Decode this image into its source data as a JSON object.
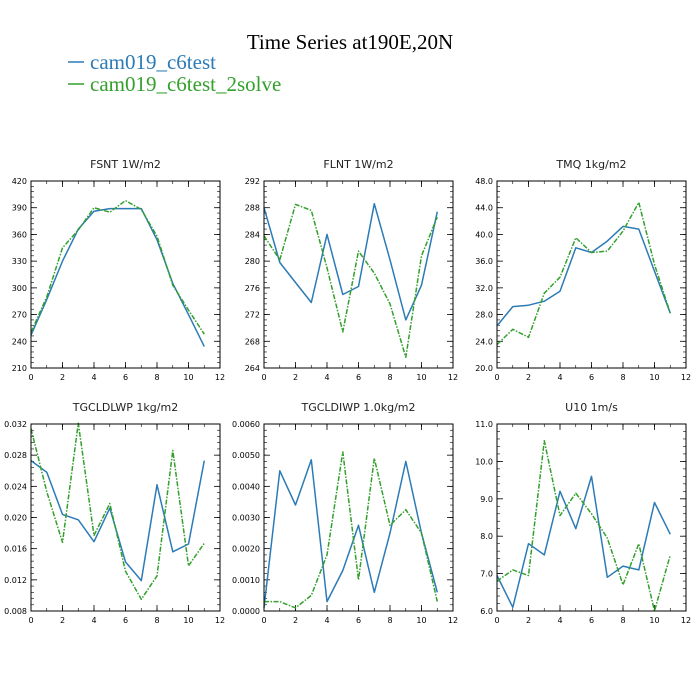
{
  "figure": {
    "title": "Time Series at190E,20N"
  },
  "legend": [
    {
      "name": "cam019_c6test",
      "color": "#2c7bb6"
    },
    {
      "name": "cam019_c6test_2solve",
      "color": "#33a02c"
    }
  ],
  "chart_data": [
    {
      "type": "line",
      "title": "FSNT   1W/m2",
      "x": [
        0,
        1,
        2,
        3,
        4,
        5,
        6,
        7,
        8,
        9,
        10,
        11
      ],
      "xlim": [
        0,
        12
      ],
      "xticks": [
        "0",
        "2",
        "4",
        "6",
        "8",
        "10",
        "12"
      ],
      "ylim": [
        210,
        420
      ],
      "yticks": [
        "210",
        "240",
        "270",
        "300",
        "330",
        "360",
        "390",
        "420"
      ],
      "series": [
        {
          "name": "cam019_c6test",
          "values": [
            247,
            287,
            330,
            366,
            386,
            389,
            389,
            389,
            354,
            305,
            270,
            234
          ]
        },
        {
          "name": "cam019_c6test_2solve",
          "values": [
            250,
            290,
            345,
            365,
            390,
            385,
            398,
            388,
            358,
            303,
            275,
            248
          ]
        }
      ]
    },
    {
      "type": "line",
      "title": "FLNT   1W/m2",
      "x": [
        0,
        1,
        2,
        3,
        4,
        5,
        6,
        7,
        8,
        9,
        10,
        11
      ],
      "xlim": [
        0,
        12
      ],
      "xticks": [
        "0",
        "2",
        "4",
        "6",
        "8",
        "10",
        "12"
      ],
      "ylim": [
        264,
        292
      ],
      "yticks": [
        "264",
        "268",
        "272",
        "276",
        "280",
        "284",
        "288",
        "292"
      ],
      "series": [
        {
          "name": "cam019_c6test",
          "values": [
            288,
            279.8,
            276.8,
            273.8,
            284,
            275,
            276.2,
            288.6,
            280.2,
            271.2,
            276.4,
            287.4
          ]
        },
        {
          "name": "cam019_c6test_2solve",
          "values": [
            283.8,
            280.2,
            288.5,
            287.6,
            279,
            269.4,
            281.5,
            278.2,
            273.6,
            265.6,
            280.8,
            286.6
          ]
        }
      ]
    },
    {
      "type": "line",
      "title": "TMQ   1kg/m2",
      "x": [
        0,
        1,
        2,
        3,
        4,
        5,
        6,
        7,
        8,
        9,
        10,
        11
      ],
      "xlim": [
        0,
        12
      ],
      "xticks": [
        "0",
        "2",
        "4",
        "6",
        "8",
        "10",
        "12"
      ],
      "ylim": [
        20,
        48
      ],
      "yticks": [
        "20.0",
        "24.0",
        "28.0",
        "32.0",
        "36.0",
        "40.0",
        "44.0",
        "48.0"
      ],
      "series": [
        {
          "name": "cam019_c6test",
          "values": [
            26.3,
            29.2,
            29.4,
            30,
            31.5,
            38,
            37.3,
            39,
            41.2,
            40.8,
            34.5,
            28.2
          ]
        },
        {
          "name": "cam019_c6test_2solve",
          "values": [
            23.5,
            25.8,
            24.6,
            31.2,
            33.6,
            39.5,
            37.3,
            37.5,
            40.5,
            44.8,
            35.5,
            28.2
          ]
        }
      ]
    },
    {
      "type": "line",
      "title": "TGCLDLWP   1kg/m2",
      "x": [
        0,
        1,
        2,
        3,
        4,
        5,
        6,
        7,
        8,
        9,
        10,
        11
      ],
      "xlim": [
        0,
        12
      ],
      "xticks": [
        "0",
        "2",
        "4",
        "6",
        "8",
        "10",
        "12"
      ],
      "ylim": [
        0.008,
        0.032
      ],
      "yticks": [
        "0.008",
        "0.012",
        "0.016",
        "0.020",
        "0.024",
        "0.028",
        "0.032"
      ],
      "series": [
        {
          "name": "cam019_c6test",
          "values": [
            0.0273,
            0.0258,
            0.0204,
            0.0197,
            0.0169,
            0.0212,
            0.0143,
            0.0119,
            0.0242,
            0.0156,
            0.0166,
            0.0273
          ]
        },
        {
          "name": "cam019_c6test_2solve",
          "values": [
            0.0314,
            0.0233,
            0.0168,
            0.0321,
            0.0177,
            0.0218,
            0.0131,
            0.0095,
            0.0125,
            0.0286,
            0.0138,
            0.0167
          ]
        }
      ]
    },
    {
      "type": "line",
      "title": "TGCLDIWP   1.0kg/m2",
      "x": [
        0,
        1,
        2,
        3,
        4,
        5,
        6,
        7,
        8,
        9,
        10,
        11
      ],
      "xlim": [
        0,
        12
      ],
      "xticks": [
        "0",
        "2",
        "4",
        "6",
        "8",
        "10",
        "12"
      ],
      "ylim": [
        0,
        0.006
      ],
      "yticks": [
        "0.0000",
        "0.0010",
        "0.0020",
        "0.0030",
        "0.0040",
        "0.0050",
        "0.0060"
      ],
      "series": [
        {
          "name": "cam019_c6test",
          "values": [
            0.0001,
            0.0045,
            0.0034,
            0.00485,
            0.0003,
            0.0013,
            0.00275,
            0.0006,
            0.0025,
            0.0048,
            0.0025,
            0.0006
          ]
        },
        {
          "name": "cam019_c6test_2solve",
          "values": [
            0.0003,
            0.0003,
            0.0001,
            0.0005,
            0.0018,
            0.0051,
            0.001,
            0.0049,
            0.00275,
            0.00325,
            0.0025,
            0.0003
          ]
        }
      ]
    },
    {
      "type": "line",
      "title": "U10   1m/s",
      "x": [
        0,
        1,
        2,
        3,
        4,
        5,
        6,
        7,
        8,
        9,
        10,
        11
      ],
      "xlim": [
        0,
        12
      ],
      "xticks": [
        "0",
        "2",
        "4",
        "6",
        "8",
        "10",
        "12"
      ],
      "ylim": [
        6.0,
        11.0
      ],
      "yticks": [
        "6.0",
        "7.0",
        "8.0",
        "9.0",
        "10.0",
        "11.0"
      ],
      "series": [
        {
          "name": "cam019_c6test",
          "values": [
            6.95,
            6.1,
            7.8,
            7.5,
            9.2,
            8.2,
            9.6,
            6.9,
            7.2,
            7.1,
            8.9,
            8.05
          ]
        },
        {
          "name": "cam019_c6test_2solve",
          "values": [
            6.8,
            7.1,
            6.95,
            10.55,
            8.55,
            9.15,
            8.6,
            7.95,
            6.7,
            7.8,
            6.0,
            7.5
          ]
        }
      ]
    }
  ]
}
